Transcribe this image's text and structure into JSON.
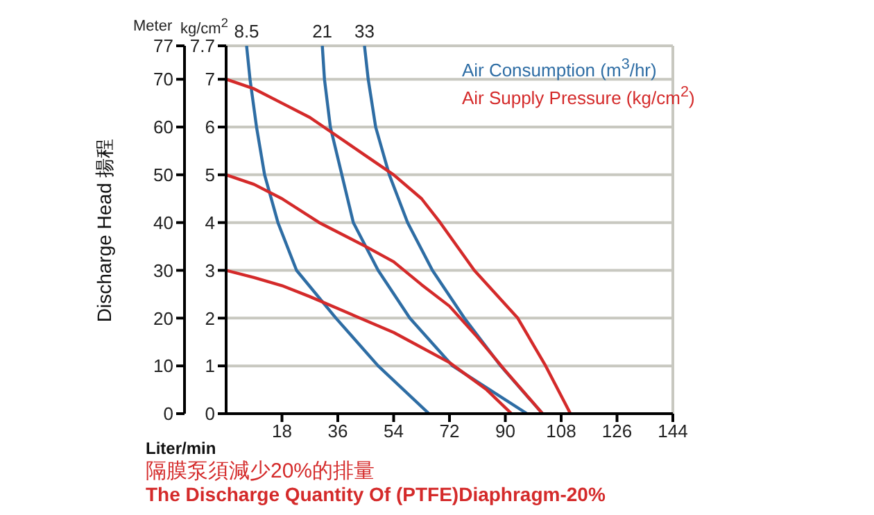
{
  "chart_data": {
    "type": "line",
    "xlabel": "Liter/min",
    "ylabel": "Discharge Head 揚程",
    "y2label": "kg/cm$^{2}$",
    "xlim": [
      0,
      144
    ],
    "xticks": [
      18,
      36,
      54,
      72,
      90,
      108,
      126,
      144
    ],
    "ylim": [
      0,
      77
    ],
    "yticks": [
      0,
      10,
      20,
      30,
      40,
      50,
      60,
      70,
      77
    ],
    "y2lim": [
      0,
      7.7
    ],
    "y2ticks": [
      0,
      1,
      2,
      3,
      4,
      5,
      6,
      7,
      7.7
    ],
    "grid": true,
    "marker": "none",
    "line_style": "solid",
    "series": [
      {
        "name": "8.5",
        "color": "#2e6da4",
        "x": [
          6.6,
          7.7,
          9.8,
          12.4,
          16.7,
          22.7,
          35.4,
          49,
          65.4
        ],
        "values": [
          77,
          70,
          60,
          50,
          40,
          30,
          20,
          10,
          0
        ]
      },
      {
        "name": "21",
        "color": "#2e6da4",
        "x": [
          31,
          31.7,
          33.6,
          37.3,
          41,
          49,
          59.2,
          73,
          97
        ],
        "values": [
          77,
          70,
          60,
          50,
          40,
          30,
          20,
          10,
          0
        ]
      },
      {
        "name": "33",
        "color": "#2e6da4",
        "x": [
          44.6,
          45.8,
          48.2,
          52.6,
          58.5,
          66.5,
          76.8,
          88.5,
          102
        ],
        "values": [
          77,
          70,
          60,
          50,
          40,
          30,
          20,
          10,
          0
        ]
      },
      {
        "color": "#d42a2a",
        "x": [
          0,
          9,
          18,
          27,
          36,
          54,
          72,
          84,
          92
        ],
        "values": [
          30,
          28.5,
          26.8,
          24.5,
          22,
          17,
          10.7,
          5,
          0
        ]
      },
      {
        "color": "#d42a2a",
        "x": [
          0,
          9,
          18,
          30,
          45,
          54,
          63,
          72,
          81,
          90,
          96,
          102
        ],
        "values": [
          50,
          48,
          45,
          40,
          35,
          31.8,
          27,
          22.5,
          16,
          9,
          4.5,
          0
        ]
      },
      {
        "color": "#d42a2a",
        "x": [
          0,
          9,
          18,
          27,
          36,
          45,
          54,
          63,
          69,
          80,
          94,
          103,
          111
        ],
        "values": [
          70,
          68,
          65,
          62,
          58,
          54,
          50,
          45,
          40,
          30,
          20,
          10,
          0
        ]
      }
    ],
    "annotations": [
      "Meter",
      "Air Consumption (m$^{3}$/hr)",
      "Air Supply Pressure (kg/cm$^{2}$)",
      "隔膜泵須減少20%的排量",
      "The Discharge Quantity Of (PTFE)Diaphragm-20%"
    ]
  }
}
